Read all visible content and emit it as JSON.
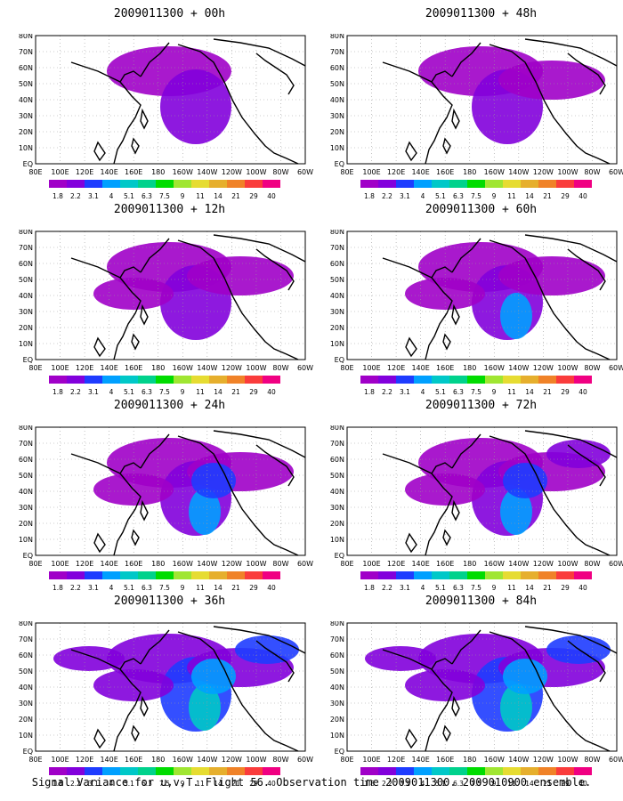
{
  "panels": [
    {
      "title": "2009011300 + 00h"
    },
    {
      "title": "2009011300 + 48h"
    },
    {
      "title": "2009011300 + 12h"
    },
    {
      "title": "2009011300 + 60h"
    },
    {
      "title": "2009011300 + 24h"
    },
    {
      "title": "2009011300 + 72h"
    },
    {
      "title": "2009011300 + 36h"
    },
    {
      "title": "2009011300 + 84h"
    }
  ],
  "lon_labels": [
    "80E",
    "100E",
    "120E",
    "140E",
    "160E",
    "180",
    "160W",
    "140W",
    "120W",
    "100W",
    "80W",
    "60W"
  ],
  "lat_labels": [
    "80N",
    "70N",
    "60N",
    "50N",
    "40N",
    "30N",
    "20N",
    "10N",
    "EQ"
  ],
  "colorbar": {
    "levels": [
      "1.8",
      "2.2",
      "3.1",
      "4",
      "5.1",
      "6.3",
      "7.5",
      "9",
      "11",
      "14",
      "21",
      "29",
      "40"
    ],
    "colors": [
      "#a000c8",
      "#8200dc",
      "#1e3cff",
      "#00a0ff",
      "#00c8c8",
      "#00d28c",
      "#00dc00",
      "#a0e632",
      "#e6dc32",
      "#e6af2d",
      "#f08228",
      "#fa3c3c",
      "#f00082"
    ]
  },
  "caption": "Signal Variance for u,v,T. Flight 56. Observation time 2009011300. 2009010900 ensemble."
}
